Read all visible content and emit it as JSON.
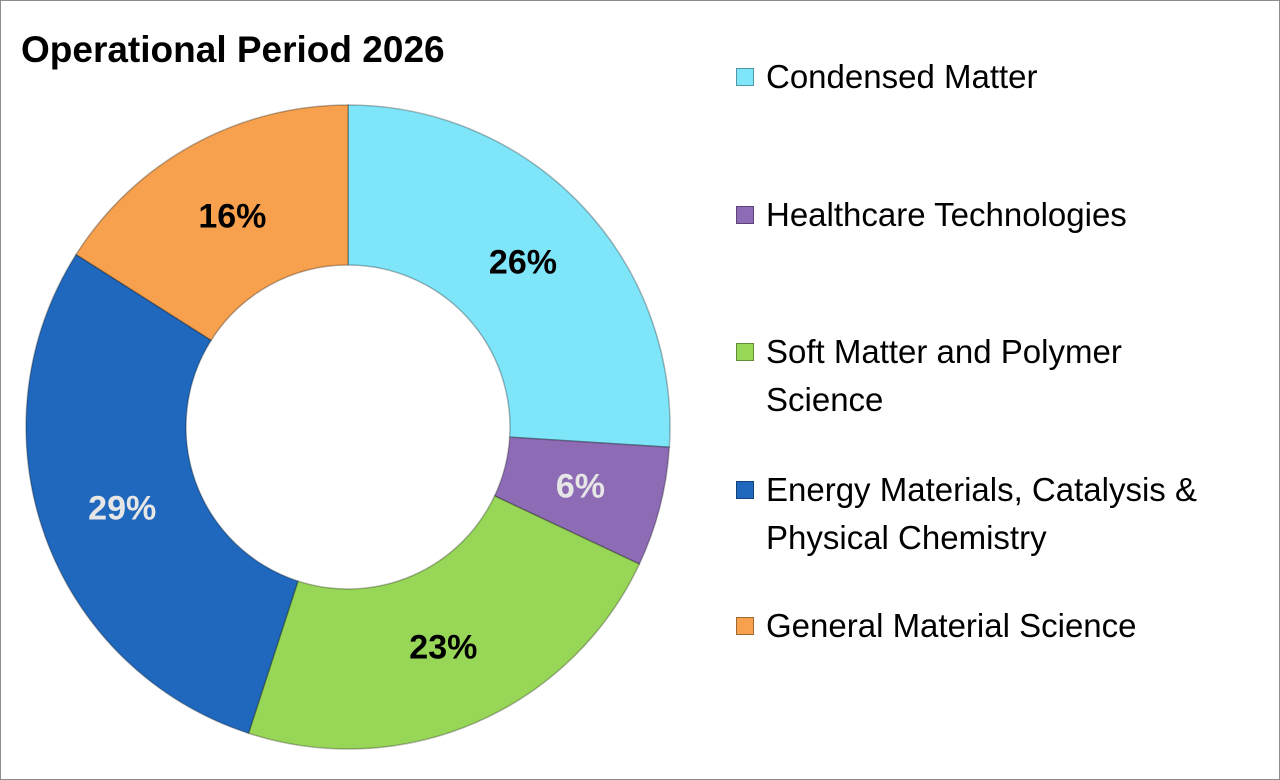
{
  "chart_data": {
    "type": "pie",
    "variant": "donut",
    "title": "Operational Period 2026",
    "legend_position": "right",
    "slices": [
      {
        "label": "Condensed Matter",
        "value": 26,
        "value_label": "26%",
        "color": "#7fe6fa",
        "label_color": "#000000"
      },
      {
        "label": "Healthcare Technologies",
        "value": 6,
        "value_label": "6%",
        "color": "#8e6bb5",
        "label_color": "#e6e6e6"
      },
      {
        "label": "Soft Matter and Polymer Science",
        "value": 23,
        "value_label": "23%",
        "color": "#97d656",
        "label_color": "#000000"
      },
      {
        "label": "Energy Materials, Catalysis & Physical Chemistry",
        "value": 29,
        "value_label": "29%",
        "color": "#1f68bd",
        "label_color": "#e6e6e6"
      },
      {
        "label": "General Material Science",
        "value": 16,
        "value_label": "16%",
        "color": "#f7a14e",
        "label_color": "#000000"
      }
    ]
  }
}
